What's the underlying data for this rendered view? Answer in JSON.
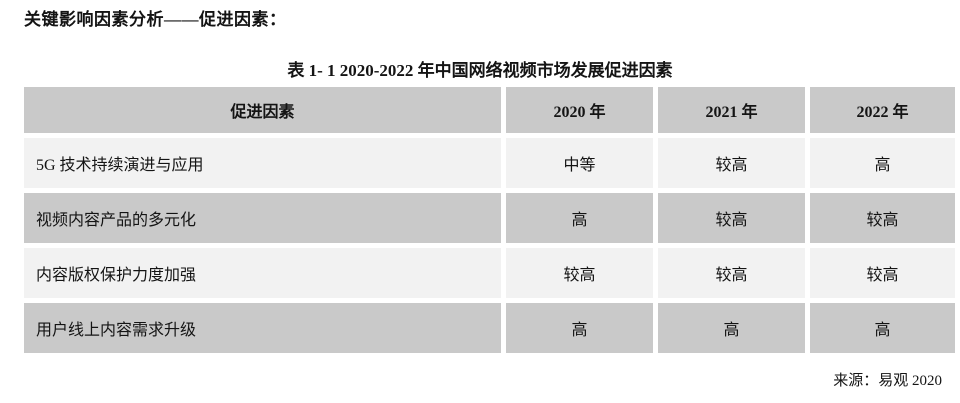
{
  "page": {
    "heading": "关键影响因素分析——促进因素：",
    "table_title": "表 1- 1 2020-2022 年中国网络视频市场发展促进因素",
    "source": "来源：易观 2020"
  },
  "colors": {
    "page_bg": "#ffffff",
    "text": "#141414",
    "table_header_bg": "#c9c9c9",
    "row_gray_bg": "#c9c9c9",
    "row_light_bg": "#f2f2f2"
  },
  "table": {
    "columns": [
      "促进因素",
      "2020 年",
      "2021 年",
      "2022 年"
    ],
    "rows": [
      {
        "factor": "5G 技术持续演进与应用",
        "values": [
          "中等",
          "较高",
          "高"
        ]
      },
      {
        "factor": "视频内容产品的多元化",
        "values": [
          "高",
          "较高",
          "较高"
        ]
      },
      {
        "factor": "内容版权保护力度加强",
        "values": [
          "较高",
          "较高",
          "较高"
        ]
      },
      {
        "factor": "用户线上内容需求升级",
        "values": [
          "高",
          "高",
          "高"
        ]
      }
    ]
  }
}
